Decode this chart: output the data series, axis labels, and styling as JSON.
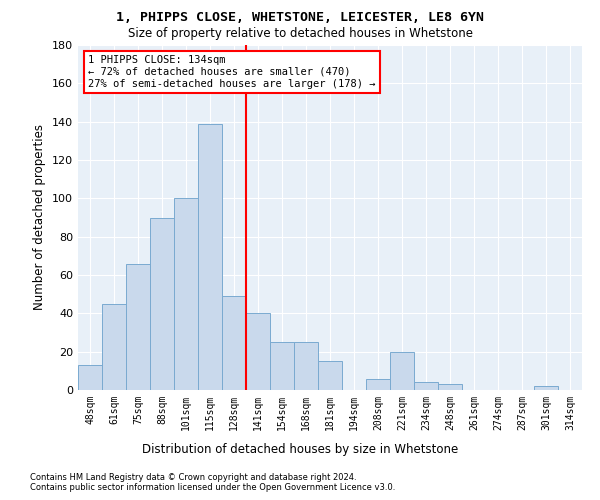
{
  "title": "1, PHIPPS CLOSE, WHETSTONE, LEICESTER, LE8 6YN",
  "subtitle": "Size of property relative to detached houses in Whetstone",
  "xlabel": "Distribution of detached houses by size in Whetstone",
  "ylabel": "Number of detached properties",
  "categories": [
    "48sqm",
    "61sqm",
    "75sqm",
    "88sqm",
    "101sqm",
    "115sqm",
    "128sqm",
    "141sqm",
    "154sqm",
    "168sqm",
    "181sqm",
    "194sqm",
    "208sqm",
    "221sqm",
    "234sqm",
    "248sqm",
    "261sqm",
    "274sqm",
    "287sqm",
    "301sqm",
    "314sqm"
  ],
  "values": [
    13,
    45,
    66,
    90,
    100,
    139,
    49,
    40,
    25,
    25,
    15,
    0,
    6,
    20,
    4,
    3,
    0,
    0,
    0,
    2,
    0
  ],
  "bar_color": "#c9d9ec",
  "bar_edge_color": "#7aaad0",
  "vline_x_idx": 6.5,
  "vline_color": "red",
  "annotation_text": "1 PHIPPS CLOSE: 134sqm\n← 72% of detached houses are smaller (470)\n27% of semi-detached houses are larger (178) →",
  "annotation_box_color": "white",
  "annotation_box_edge_color": "red",
  "ylim": [
    0,
    180
  ],
  "yticks": [
    0,
    20,
    40,
    60,
    80,
    100,
    120,
    140,
    160,
    180
  ],
  "bg_color": "#e8f0f8",
  "grid_color": "white",
  "footer_line1": "Contains HM Land Registry data © Crown copyright and database right 2024.",
  "footer_line2": "Contains public sector information licensed under the Open Government Licence v3.0."
}
